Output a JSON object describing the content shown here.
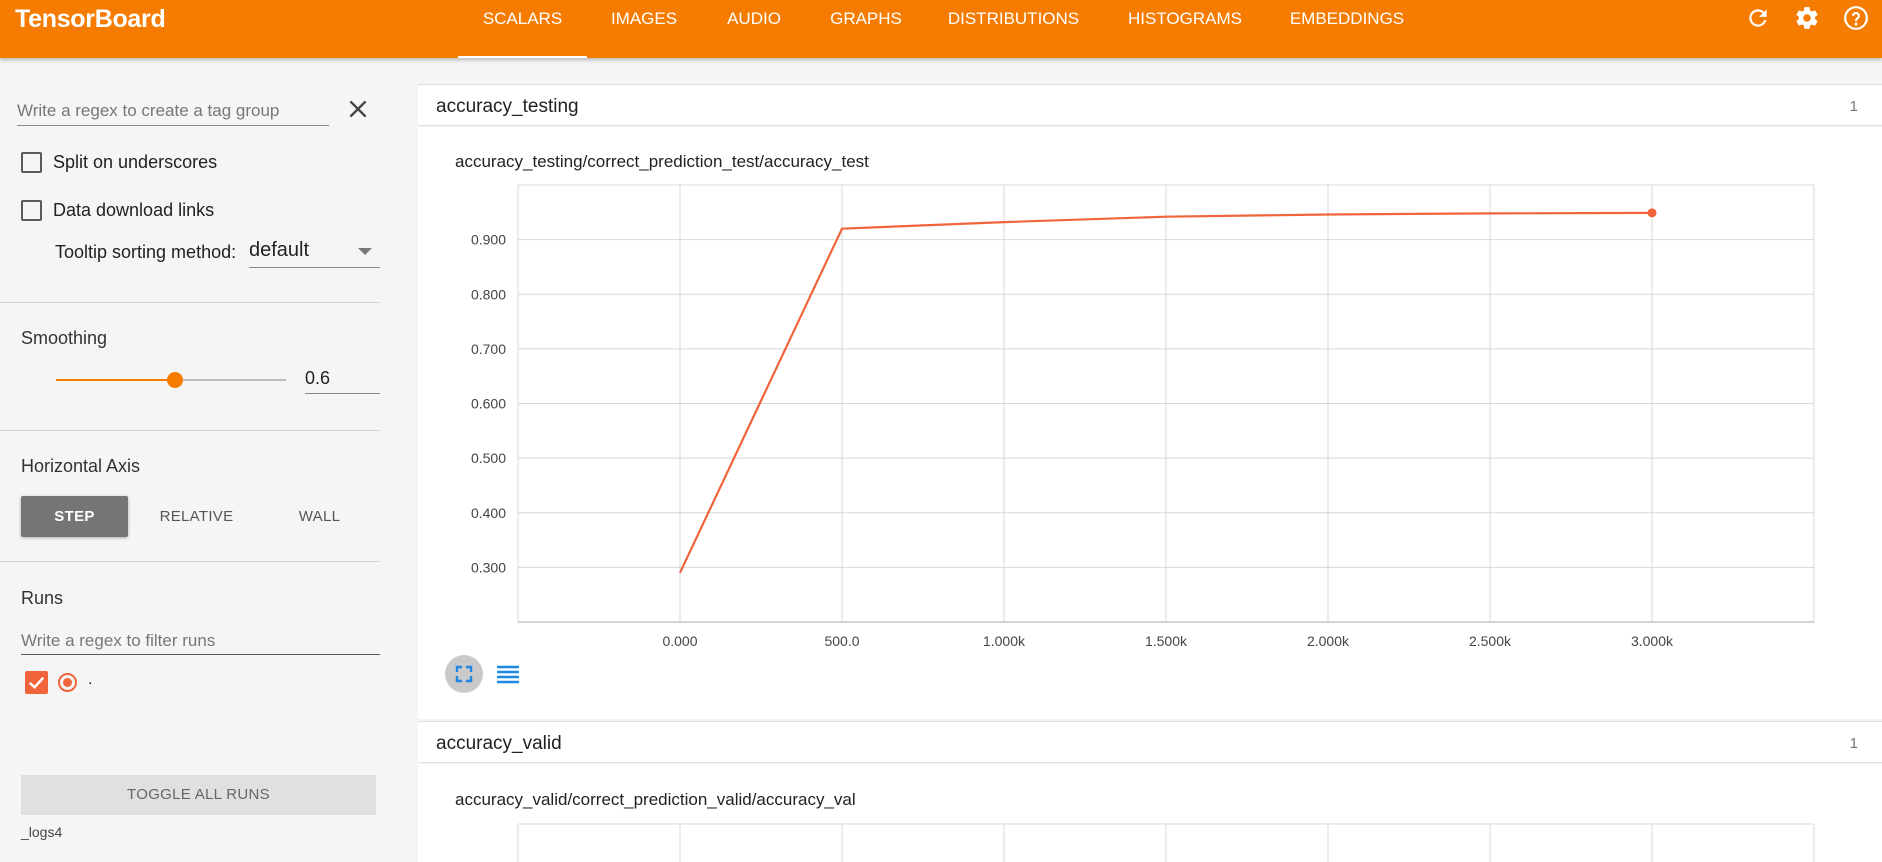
{
  "header": {
    "brand": "TensorBoard",
    "tabs": [
      {
        "label": "SCALARS",
        "active": true
      },
      {
        "label": "IMAGES"
      },
      {
        "label": "AUDIO"
      },
      {
        "label": "GRAPHS"
      },
      {
        "label": "DISTRIBUTIONS"
      },
      {
        "label": "HISTOGRAMS"
      },
      {
        "label": "EMBEDDINGS"
      }
    ],
    "icons": [
      "refresh-icon",
      "settings-gear-icon",
      "help-circle-icon"
    ]
  },
  "sidebar": {
    "tag_regex_placeholder": "Write a regex to create a tag group",
    "split_underscores_label": "Split on underscores",
    "split_underscores_checked": false,
    "download_links_label": "Data download links",
    "download_links_checked": false,
    "tooltip_sort_label": "Tooltip sorting method:",
    "tooltip_sort_value": "default",
    "smoothing_title": "Smoothing",
    "smoothing_value": "0.6",
    "horizontal_axis_title": "Horizontal Axis",
    "axis_buttons": [
      {
        "label": "STEP",
        "active": true
      },
      {
        "label": "RELATIVE"
      },
      {
        "label": "WALL"
      }
    ],
    "runs_title": "Runs",
    "runs_regex_placeholder": "Write a regex to filter runs",
    "run_name": ".",
    "toggle_all_label": "TOGGLE ALL RUNS",
    "logdir": "_logs4"
  },
  "cards": [
    {
      "title": "accuracy_testing",
      "count": "1",
      "chart_title": "accuracy_testing/correct_prediction_test/accuracy_test"
    },
    {
      "title": "accuracy_valid",
      "count": "1",
      "chart_title": "accuracy_valid/correct_prediction_valid/accuracy_val"
    }
  ],
  "colors": {
    "accent": "#f57c00",
    "series": "#f0643c",
    "axis_active": "#757575"
  },
  "chart_data": {
    "type": "line",
    "title": "accuracy_testing/correct_prediction_test/accuracy_test",
    "x": [
      0,
      500,
      1000,
      1500,
      2000,
      2500,
      3000
    ],
    "series": [
      {
        "values": [
          0.29,
          0.92,
          0.932,
          0.942,
          0.946,
          0.948,
          0.949
        ]
      }
    ],
    "xlim": [
      -500,
      3500
    ],
    "ylim": [
      0.2,
      1.0
    ],
    "xticks": [
      "0.000",
      "500.0",
      "1.000k",
      "1.500k",
      "2.000k",
      "2.500k",
      "3.000k"
    ],
    "yticks": [
      "0.300",
      "0.400",
      "0.500",
      "0.600",
      "0.700",
      "0.800",
      "0.900"
    ],
    "grid": true
  }
}
